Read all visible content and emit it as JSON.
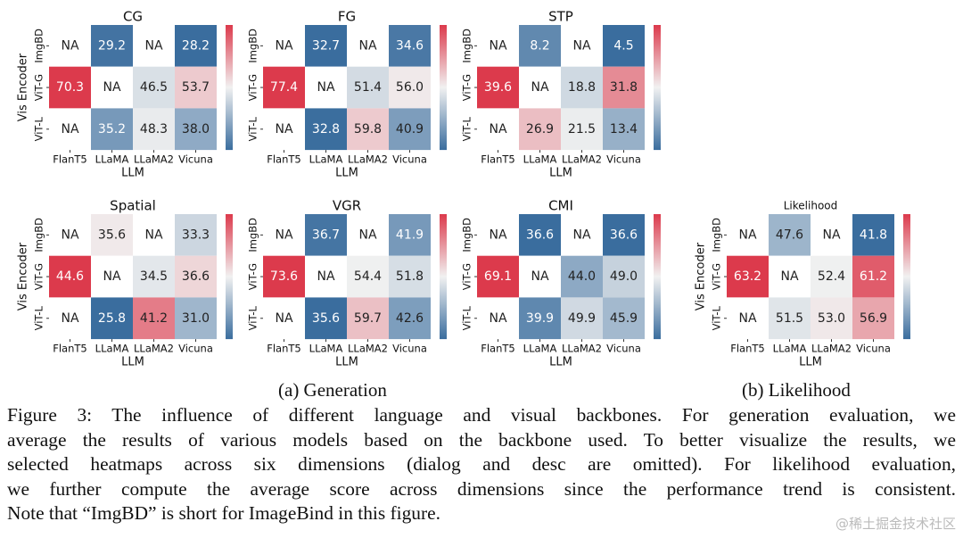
{
  "chart_data": [
    {
      "type": "heatmap",
      "title": "CG",
      "x_label": "LLM",
      "y_label": "Vis Encoder",
      "x_categories": [
        "FlanT5",
        "LLaMA",
        "LLaMA2",
        "Vicuna"
      ],
      "y_categories": [
        "ImgBD",
        "ViT-G",
        "ViT-L"
      ],
      "values": [
        [
          null,
          29.2,
          null,
          28.2
        ],
        [
          70.3,
          null,
          46.5,
          53.7
        ],
        [
          null,
          35.2,
          48.3,
          38.0
        ]
      ],
      "value_labels": [
        [
          "NA",
          "29.2",
          "NA",
          "28.2"
        ],
        [
          "70.3",
          "NA",
          "46.5",
          "53.7"
        ],
        [
          "NA",
          "35.2",
          "48.3",
          "38.0"
        ]
      ],
      "colormap": [
        "#3a6d9e",
        "#f1f1f1",
        "#dc3a4c"
      ]
    },
    {
      "type": "heatmap",
      "title": "FG",
      "x_label": "LLM",
      "x_categories": [
        "FlanT5",
        "LLaMA",
        "LLaMA2",
        "Vicuna"
      ],
      "y_categories": [
        "ImgBD",
        "ViT-G",
        "ViT-L"
      ],
      "values": [
        [
          null,
          32.7,
          null,
          34.6
        ],
        [
          77.4,
          null,
          51.4,
          56.0
        ],
        [
          null,
          32.8,
          59.8,
          40.9
        ]
      ],
      "value_labels": [
        [
          "NA",
          "32.7",
          "NA",
          "34.6"
        ],
        [
          "77.4",
          "NA",
          "51.4",
          "56.0"
        ],
        [
          "NA",
          "32.8",
          "59.8",
          "40.9"
        ]
      ],
      "colormap": [
        "#3a6d9e",
        "#f1f1f1",
        "#dc3a4c"
      ]
    },
    {
      "type": "heatmap",
      "title": "STP",
      "x_label": "LLM",
      "x_categories": [
        "FlanT5",
        "LLaMA",
        "LLaMA2",
        "Vicuna"
      ],
      "y_categories": [
        "ImgBD",
        "ViT-G",
        "ViT-L"
      ],
      "values": [
        [
          null,
          8.2,
          null,
          4.5
        ],
        [
          39.6,
          null,
          18.8,
          31.8
        ],
        [
          null,
          26.9,
          21.5,
          13.4
        ]
      ],
      "value_labels": [
        [
          "NA",
          "8.2",
          "NA",
          "4.5"
        ],
        [
          "39.6",
          "NA",
          "18.8",
          "31.8"
        ],
        [
          "NA",
          "26.9",
          "21.5",
          "13.4"
        ]
      ],
      "colormap": [
        "#3a6d9e",
        "#f1f1f1",
        "#dc3a4c"
      ]
    },
    {
      "type": "heatmap",
      "title": "Spatial",
      "x_label": "LLM",
      "y_label": "Vis Encoder",
      "x_categories": [
        "FlanT5",
        "LLaMA",
        "LLaMA2",
        "Vicuna"
      ],
      "y_categories": [
        "ImgBD",
        "ViT-G",
        "ViT-L"
      ],
      "values": [
        [
          null,
          35.6,
          null,
          33.3
        ],
        [
          44.6,
          null,
          34.5,
          36.6
        ],
        [
          null,
          25.8,
          41.2,
          31.0
        ]
      ],
      "value_labels": [
        [
          "NA",
          "35.6",
          "NA",
          "33.3"
        ],
        [
          "44.6",
          "NA",
          "34.5",
          "36.6"
        ],
        [
          "NA",
          "25.8",
          "41.2",
          "31.0"
        ]
      ],
      "colormap": [
        "#3a6d9e",
        "#f1f1f1",
        "#dc3a4c"
      ]
    },
    {
      "type": "heatmap",
      "title": "VGR",
      "x_label": "LLM",
      "x_categories": [
        "FlanT5",
        "LLaMA",
        "LLaMA2",
        "Vicuna"
      ],
      "y_categories": [
        "ImgBD",
        "ViT-G",
        "ViT-L"
      ],
      "values": [
        [
          null,
          36.7,
          null,
          41.9
        ],
        [
          73.6,
          null,
          54.4,
          51.8
        ],
        [
          null,
          35.6,
          59.7,
          42.6
        ]
      ],
      "value_labels": [
        [
          "NA",
          "36.7",
          "NA",
          "41.9"
        ],
        [
          "73.6",
          "NA",
          "54.4",
          "51.8"
        ],
        [
          "NA",
          "35.6",
          "59.7",
          "42.6"
        ]
      ],
      "colormap": [
        "#3a6d9e",
        "#f1f1f1",
        "#dc3a4c"
      ]
    },
    {
      "type": "heatmap",
      "title": "CMI",
      "x_label": "LLM",
      "x_categories": [
        "FlanT5",
        "LLaMA",
        "LLaMA2",
        "Vicuna"
      ],
      "y_categories": [
        "ImgBD",
        "ViT-G",
        "ViT-L"
      ],
      "values": [
        [
          null,
          36.6,
          null,
          36.6
        ],
        [
          69.1,
          null,
          44.0,
          49.0
        ],
        [
          null,
          39.9,
          49.9,
          45.9
        ]
      ],
      "value_labels": [
        [
          "NA",
          "36.6",
          "NA",
          "36.6"
        ],
        [
          "69.1",
          "NA",
          "44.0",
          "49.0"
        ],
        [
          "NA",
          "39.9",
          "49.9",
          "45.9"
        ]
      ],
      "colormap": [
        "#3a6d9e",
        "#f1f1f1",
        "#dc3a4c"
      ]
    },
    {
      "type": "heatmap",
      "title": "Likelihood",
      "x_label": "LLM",
      "y_label": "Vis Encoder",
      "x_categories": [
        "FlanT5",
        "LLaMA",
        "LLaMA2",
        "Vicuna"
      ],
      "y_categories": [
        "ImgBD",
        "ViT-G",
        "ViT-L"
      ],
      "values": [
        [
          null,
          47.6,
          null,
          41.8
        ],
        [
          63.2,
          null,
          52.4,
          61.2
        ],
        [
          null,
          51.5,
          53.0,
          56.9
        ]
      ],
      "value_labels": [
        [
          "NA",
          "47.6",
          "NA",
          "41.8"
        ],
        [
          "63.2",
          "NA",
          "52.4",
          "61.2"
        ],
        [
          "NA",
          "51.5",
          "53.0",
          "56.9"
        ]
      ],
      "colormap": [
        "#3a6d9e",
        "#f1f1f1",
        "#dc3a4c"
      ]
    }
  ],
  "subcaptions": [
    "(a) Generation",
    "(b) Likelihood"
  ],
  "caption_lines": [
    "Figure 3: The influence of different language and visual backbones. For generation evaluation, we",
    "average the results of various models based on the backbone used. To better visualize the results, we",
    "selected heatmaps across six dimensions (dialog and desc are omitted). For likelihood evaluation,",
    "we further compute the average score across dimensions since the performance trend is consistent.",
    "Note that “ImgBD” is short for ImageBind in this figure."
  ],
  "watermark": "@稀土掘金技术社区"
}
